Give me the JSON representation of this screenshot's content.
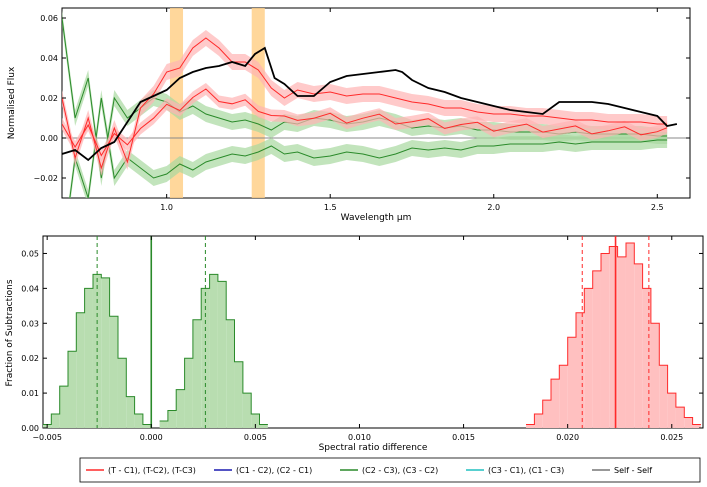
{
  "chart_data": [
    {
      "type": "line",
      "xlabel": "Wavelength μm",
      "ylabel": "Normalised Flux",
      "xlim": [
        0.68,
        2.6
      ],
      "ylim": [
        -0.03,
        0.065
      ],
      "xticks": [
        1.0,
        1.5,
        2.0,
        2.5
      ],
      "xtick_labels": [
        "1.0",
        "1.5",
        "2.0",
        "2.5"
      ],
      "yticks": [
        -0.02,
        0.0,
        0.02,
        0.04,
        0.06
      ],
      "ytick_labels": [
        "−0.02",
        "0.00",
        "0.02",
        "0.04",
        "0.06"
      ],
      "highlight_bands": [
        [
          1.01,
          1.05
        ],
        [
          1.26,
          1.3
        ]
      ],
      "highlight_color": "#ffd08a",
      "zero_line": true,
      "series": [
        {
          "name": "Self - Self",
          "color": "#000000",
          "x": [
            0.68,
            0.72,
            0.76,
            0.8,
            0.84,
            0.88,
            0.92,
            0.96,
            1.0,
            1.04,
            1.08,
            1.12,
            1.16,
            1.2,
            1.24,
            1.27,
            1.3,
            1.33,
            1.36,
            1.4,
            1.45,
            1.5,
            1.55,
            1.6,
            1.65,
            1.7,
            1.72,
            1.75,
            1.8,
            1.85,
            1.9,
            1.95,
            2.0,
            2.05,
            2.1,
            2.15,
            2.2,
            2.25,
            2.3,
            2.35,
            2.4,
            2.45,
            2.5,
            2.53,
            2.56
          ],
          "y": [
            -0.008,
            -0.006,
            -0.011,
            -0.005,
            -0.002,
            0.008,
            0.018,
            0.021,
            0.024,
            0.03,
            0.033,
            0.035,
            0.036,
            0.038,
            0.036,
            0.042,
            0.045,
            0.03,
            0.027,
            0.021,
            0.021,
            0.028,
            0.031,
            0.032,
            0.033,
            0.034,
            0.033,
            0.029,
            0.025,
            0.023,
            0.02,
            0.018,
            0.016,
            0.014,
            0.013,
            0.012,
            0.018,
            0.018,
            0.018,
            0.017,
            0.015,
            0.013,
            0.011,
            0.006,
            0.007
          ]
        },
        {
          "name": "(T - C1), (T-C2), (T-C3)",
          "color": "#ff2a2a",
          "band_color": "#ffb3b3",
          "x": [
            0.68,
            0.72,
            0.76,
            0.8,
            0.84,
            0.88,
            0.92,
            0.96,
            1.0,
            1.04,
            1.08,
            1.12,
            1.16,
            1.2,
            1.24,
            1.28,
            1.32,
            1.36,
            1.4,
            1.45,
            1.5,
            1.55,
            1.6,
            1.65,
            1.7,
            1.75,
            1.8,
            1.85,
            1.9,
            1.95,
            2.0,
            2.05,
            2.1,
            2.15,
            2.2,
            2.25,
            2.3,
            2.35,
            2.4,
            2.45,
            2.5,
            2.53
          ],
          "y": [
            0.02,
            -0.01,
            0.01,
            -0.015,
            0.005,
            -0.012,
            0.015,
            0.022,
            0.033,
            0.035,
            0.045,
            0.05,
            0.045,
            0.038,
            0.038,
            0.034,
            0.025,
            0.02,
            0.024,
            0.022,
            0.023,
            0.021,
            0.022,
            0.022,
            0.02,
            0.018,
            0.017,
            0.015,
            0.015,
            0.013,
            0.012,
            0.012,
            0.011,
            0.011,
            0.01,
            0.009,
            0.009,
            0.008,
            0.008,
            0.008,
            0.007,
            0.007
          ]
        },
        {
          "name": "(C2 - C3), (C3 - C2)",
          "color": "#2a8a2a",
          "band_color": "#a8d8a0",
          "x": [
            0.68,
            0.72,
            0.76,
            0.8,
            0.84,
            0.88,
            0.92,
            0.96,
            1.0,
            1.04,
            1.08,
            1.12,
            1.16,
            1.2,
            1.24,
            1.28,
            1.32,
            1.36,
            1.4,
            1.45,
            1.5,
            1.55,
            1.6,
            1.65,
            1.7,
            1.75,
            1.8,
            1.85,
            1.9,
            1.95,
            2.0,
            2.05,
            2.1,
            2.15,
            2.2,
            2.25,
            2.3,
            2.35,
            2.4,
            2.45,
            2.5,
            2.53
          ],
          "y": [
            0.06,
            0.01,
            0.03,
            -0.02,
            0.02,
            0.01,
            0.015,
            0.02,
            0.018,
            0.013,
            0.016,
            0.012,
            0.01,
            0.008,
            0.009,
            0.007,
            0.004,
            0.008,
            0.007,
            0.01,
            0.009,
            0.007,
            0.008,
            0.01,
            0.008,
            0.005,
            0.006,
            0.005,
            0.006,
            0.004,
            0.004,
            0.003,
            0.003,
            0.003,
            0.002,
            0.003,
            0.002,
            0.002,
            0.002,
            0.002,
            0.001,
            0.001
          ]
        }
      ]
    },
    {
      "type": "bar",
      "xlabel": "Spectral ratio difference",
      "ylabel": "Fraction of Subtractions",
      "xlim": [
        -0.0052,
        0.0265
      ],
      "ylim": [
        0.0,
        0.055
      ],
      "xticks": [
        -0.005,
        0.0,
        0.005,
        0.01,
        0.015,
        0.02,
        0.025
      ],
      "xtick_labels": [
        "−0.005",
        "0.000",
        "0.005",
        "0.010",
        "0.015",
        "0.020",
        "0.025"
      ],
      "yticks": [
        0.0,
        0.01,
        0.02,
        0.03,
        0.04,
        0.05
      ],
      "ytick_labels": [
        "0.00",
        "0.01",
        "0.02",
        "0.03",
        "0.04",
        "0.05"
      ],
      "histograms": [
        {
          "name": "(C2 - C3), (C3 - C2)",
          "color": "#2a8a2a",
          "fill": "#b8ddb0",
          "bins_x": [
            -0.0052,
            -0.0048,
            -0.0044,
            -0.004,
            -0.0036,
            -0.0032,
            -0.0028,
            -0.0024,
            -0.002,
            -0.0016,
            -0.0012,
            -0.0008,
            -0.0004
          ],
          "values": [
            0.001,
            0.004,
            0.012,
            0.022,
            0.033,
            0.04,
            0.044,
            0.043,
            0.032,
            0.02,
            0.009,
            0.004,
            0.001
          ]
        },
        {
          "name": "(C2 - C3), (C3 - C2)",
          "color": "#2a8a2a",
          "fill": "#b8ddb0",
          "bins_x": [
            0.0004,
            0.0008,
            0.0012,
            0.0016,
            0.002,
            0.0024,
            0.0028,
            0.0032,
            0.0036,
            0.004,
            0.0044,
            0.0048,
            0.0052
          ],
          "values": [
            0.002,
            0.005,
            0.011,
            0.02,
            0.031,
            0.04,
            0.044,
            0.042,
            0.031,
            0.019,
            0.01,
            0.004,
            0.001
          ]
        },
        {
          "name": "(T - C1), (T-C2), (T-C3)",
          "color": "#ff2a2a",
          "fill": "#ffc0c0",
          "bins_x": [
            0.018,
            0.0184,
            0.0188,
            0.0192,
            0.0196,
            0.02,
            0.0204,
            0.0208,
            0.0212,
            0.0216,
            0.022,
            0.0224,
            0.0228,
            0.0232,
            0.0236,
            0.024,
            0.0244,
            0.0248,
            0.0252,
            0.0256,
            0.026
          ],
          "values": [
            0.001,
            0.004,
            0.008,
            0.014,
            0.018,
            0.026,
            0.033,
            0.04,
            0.045,
            0.05,
            0.052,
            0.049,
            0.053,
            0.047,
            0.04,
            0.03,
            0.018,
            0.01,
            0.006,
            0.003,
            0.001
          ]
        }
      ],
      "vlines": [
        {
          "x": -0.0026,
          "color": "#2a8a2a",
          "style": "dashed"
        },
        {
          "x": 0.0026,
          "color": "#2a8a2a",
          "style": "dashed"
        },
        {
          "x": 0.0,
          "color": "#2a8a2a",
          "style": "solid"
        },
        {
          "x": 0.0207,
          "color": "#ff2a2a",
          "style": "dashed"
        },
        {
          "x": 0.0239,
          "color": "#ff2a2a",
          "style": "dashed"
        },
        {
          "x": 0.0223,
          "color": "#ff2a2a",
          "style": "solid"
        }
      ]
    }
  ],
  "legend": {
    "items": [
      {
        "label": "(T - C1), (T-C2), (T-C3)",
        "color": "#ff2a2a"
      },
      {
        "label": "(C1 - C2), (C2 - C1)",
        "color": "#1a1ab0"
      },
      {
        "label": "(C2 - C3), (C3 - C2)",
        "color": "#2a8a2a"
      },
      {
        "label": "(C3 - C1), (C1 - C3)",
        "color": "#20c0c0"
      },
      {
        "label": "Self - Self",
        "color": "#777777"
      }
    ]
  }
}
